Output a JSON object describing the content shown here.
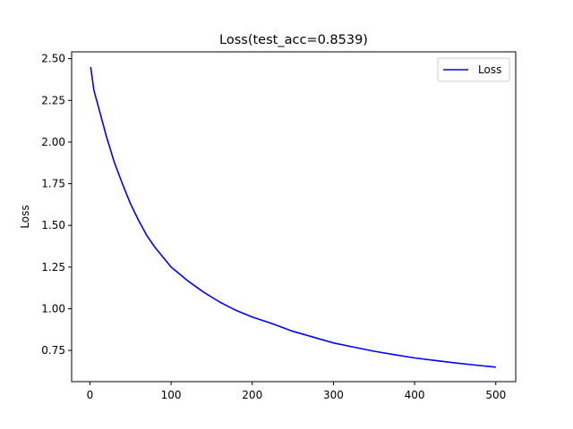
{
  "chart_data": {
    "type": "line",
    "title": "Loss(test_acc=0.8539)",
    "xlabel": "",
    "ylabel": "Loss",
    "xlim": [
      -22.5,
      524.5
    ],
    "ylim": [
      0.563,
      2.541
    ],
    "xticks": [
      0,
      100,
      200,
      300,
      400,
      500
    ],
    "yticks": [
      0.75,
      1.0,
      1.25,
      1.5,
      1.75,
      2.0,
      2.25,
      2.5
    ],
    "xtick_labels": [
      "0",
      "100",
      "200",
      "300",
      "400",
      "500"
    ],
    "ytick_labels": [
      "0.75",
      "1.00",
      "1.25",
      "1.50",
      "1.75",
      "2.00",
      "2.25",
      "2.50"
    ],
    "grid": false,
    "legend": {
      "placement": "upper right",
      "entries": [
        "Loss"
      ]
    },
    "series": [
      {
        "name": "Loss",
        "color": "#0000ff",
        "x": [
          1,
          5,
          10,
          20,
          30,
          40,
          50,
          60,
          70,
          80,
          90,
          100,
          120,
          140,
          160,
          180,
          200,
          225,
          250,
          275,
          300,
          325,
          350,
          375,
          400,
          425,
          450,
          475,
          500
        ],
        "y": [
          2.45,
          2.31,
          2.22,
          2.04,
          1.88,
          1.75,
          1.63,
          1.53,
          1.44,
          1.37,
          1.31,
          1.25,
          1.17,
          1.1,
          1.04,
          0.99,
          0.95,
          0.91,
          0.865,
          0.83,
          0.795,
          0.77,
          0.745,
          0.725,
          0.705,
          0.69,
          0.675,
          0.662,
          0.65
        ]
      }
    ]
  }
}
